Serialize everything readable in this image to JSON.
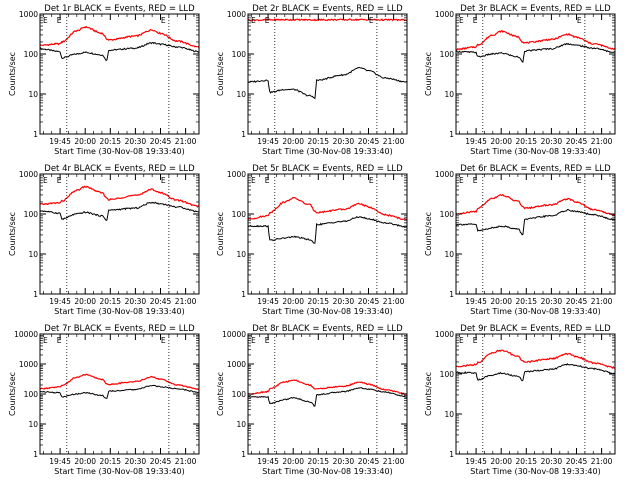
{
  "figure": {
    "colors": {
      "events": "#000000",
      "lld": "#ff0000",
      "background": "#ffffff",
      "axes": "#000000"
    },
    "shared": {
      "xlabel": "Start Time (30-Nov-08 19:33:40)",
      "ylabel": "Counts/sec",
      "xtick_labels": [
        "19:45",
        "20:00",
        "20:15",
        "20:30",
        "20:45",
        "21:00"
      ],
      "marker_label": "E",
      "y_scale": "log"
    }
  },
  "chart_data": [
    {
      "type": "line",
      "title": "Det 1r BLACK = Events, RED = LLD",
      "ylim": [
        1,
        1000
      ],
      "ytick_labels": [
        "1",
        "10",
        "100",
        "1000"
      ],
      "x": [
        "19:33",
        "19:45",
        "19:46",
        "19:55",
        "20:00",
        "20:10",
        "20:13",
        "20:14",
        "20:30",
        "20:40",
        "20:45",
        "20:55",
        "21:08"
      ],
      "series": [
        {
          "name": "Events",
          "values": [
            135,
            115,
            80,
            100,
            110,
            95,
            70,
            125,
            140,
            190,
            175,
            150,
            115
          ]
        },
        {
          "name": "LLD",
          "values": [
            165,
            180,
            200,
            380,
            470,
            330,
            240,
            225,
            280,
            400,
            330,
            210,
            150
          ]
        }
      ],
      "vlines": [
        "19:49",
        "20:50"
      ]
    },
    {
      "type": "line",
      "title": "Det 2r BLACK = Events, RED = LLD",
      "ylim": [
        1,
        1000
      ],
      "ytick_labels": [
        "1",
        "10",
        "100",
        "1000"
      ],
      "x": [
        "19:33",
        "19:45",
        "19:46",
        "19:55",
        "20:00",
        "20:10",
        "20:13",
        "20:14",
        "20:30",
        "20:40",
        "20:45",
        "20:55",
        "21:08"
      ],
      "series": [
        {
          "name": "Events",
          "values": [
            20,
            22,
            11,
            13,
            13,
            9,
            8,
            22,
            30,
            45,
            38,
            25,
            20
          ]
        },
        {
          "name": "LLD",
          "values": [
            700,
            710,
            715,
            720,
            720,
            715,
            710,
            715,
            720,
            725,
            720,
            715,
            710
          ]
        }
      ],
      "vlines": [
        "19:49",
        "20:50"
      ]
    },
    {
      "type": "line",
      "title": "Det 3r BLACK = Events, RED = LLD",
      "ylim": [
        1,
        1000
      ],
      "ytick_labels": [
        "1",
        "10",
        "100",
        "1000"
      ],
      "x": [
        "19:33",
        "19:45",
        "19:46",
        "19:55",
        "20:00",
        "20:10",
        "20:13",
        "20:14",
        "20:30",
        "20:40",
        "20:45",
        "20:55",
        "21:08"
      ],
      "series": [
        {
          "name": "Events",
          "values": [
            115,
            110,
            85,
            100,
            105,
            85,
            65,
            120,
            135,
            180,
            165,
            140,
            110
          ]
        },
        {
          "name": "LLD",
          "values": [
            130,
            150,
            170,
            300,
            370,
            270,
            200,
            190,
            230,
            310,
            260,
            180,
            135
          ]
        }
      ],
      "vlines": [
        "19:49",
        "20:50"
      ]
    },
    {
      "type": "line",
      "title": "Det 4r BLACK = Events, RED = LLD",
      "ylim": [
        1,
        1000
      ],
      "ytick_labels": [
        "1",
        "10",
        "100",
        "1000"
      ],
      "x": [
        "19:33",
        "19:45",
        "19:46",
        "19:55",
        "20:00",
        "20:10",
        "20:13",
        "20:14",
        "20:30",
        "20:40",
        "20:45",
        "20:55",
        "21:08"
      ],
      "series": [
        {
          "name": "Events",
          "values": [
            120,
            105,
            75,
            100,
            110,
            90,
            70,
            125,
            140,
            195,
            180,
            150,
            115
          ]
        },
        {
          "name": "LLD",
          "values": [
            175,
            190,
            210,
            390,
            480,
            340,
            250,
            230,
            290,
            410,
            340,
            220,
            155
          ]
        }
      ],
      "vlines": [
        "19:49",
        "20:50"
      ]
    },
    {
      "type": "line",
      "title": "Det 5r BLACK = Events, RED = LLD",
      "ylim": [
        1,
        1000
      ],
      "ytick_labels": [
        "1",
        "10",
        "100",
        "1000"
      ],
      "x": [
        "19:33",
        "19:45",
        "19:46",
        "19:55",
        "20:00",
        "20:10",
        "20:13",
        "20:14",
        "20:30",
        "20:40",
        "20:45",
        "20:55",
        "21:08"
      ],
      "series": [
        {
          "name": "Events",
          "values": [
            50,
            50,
            22,
            25,
            27,
            23,
            18,
            55,
            65,
            85,
            75,
            60,
            48
          ]
        },
        {
          "name": "LLD",
          "values": [
            75,
            90,
            110,
            200,
            250,
            170,
            120,
            110,
            130,
            180,
            150,
            95,
            72
          ]
        }
      ],
      "vlines": [
        "19:49",
        "20:50"
      ]
    },
    {
      "type": "line",
      "title": "Det 6r BLACK = Events, RED = LLD",
      "ylim": [
        1,
        1000
      ],
      "ytick_labels": [
        "1",
        "10",
        "100",
        "1000"
      ],
      "x": [
        "19:33",
        "19:45",
        "19:46",
        "19:55",
        "20:00",
        "20:10",
        "20:13",
        "20:14",
        "20:30",
        "20:40",
        "20:45",
        "20:55",
        "21:08"
      ],
      "series": [
        {
          "name": "Events",
          "values": [
            55,
            55,
            38,
            45,
            50,
            42,
            30,
            75,
            90,
            125,
            115,
            95,
            72
          ]
        },
        {
          "name": "LLD",
          "values": [
            100,
            115,
            140,
            250,
            300,
            210,
            150,
            140,
            170,
            240,
            200,
            130,
            95
          ]
        }
      ],
      "vlines": [
        "19:49",
        "20:50"
      ]
    },
    {
      "type": "line",
      "title": "Det 7r BLACK = Events, RED = LLD",
      "ylim": [
        1,
        10000
      ],
      "ytick_labels": [
        "1",
        "10",
        "100",
        "1000",
        "10000"
      ],
      "x": [
        "19:33",
        "19:45",
        "19:46",
        "19:55",
        "20:00",
        "20:10",
        "20:13",
        "20:14",
        "20:30",
        "20:40",
        "20:45",
        "20:55",
        "21:08"
      ],
      "series": [
        {
          "name": "Events",
          "values": [
            120,
            110,
            80,
            100,
            110,
            90,
            70,
            125,
            140,
            190,
            175,
            150,
            115
          ]
        },
        {
          "name": "LLD",
          "values": [
            150,
            170,
            190,
            360,
            440,
            310,
            220,
            210,
            260,
            370,
            310,
            200,
            145
          ]
        }
      ],
      "vlines": [
        "19:49",
        "20:50"
      ]
    },
    {
      "type": "line",
      "title": "Det 8r BLACK = Events, RED = LLD",
      "ylim": [
        1,
        10000
      ],
      "ytick_labels": [
        "1",
        "10",
        "100",
        "1000",
        "10000"
      ],
      "x": [
        "19:33",
        "19:45",
        "19:46",
        "19:55",
        "20:00",
        "20:10",
        "20:13",
        "20:14",
        "20:30",
        "20:40",
        "20:45",
        "20:55",
        "21:08"
      ],
      "series": [
        {
          "name": "Events",
          "values": [
            80,
            80,
            48,
            65,
            75,
            55,
            40,
            95,
            120,
            160,
            145,
            115,
            80
          ]
        },
        {
          "name": "LLD",
          "values": [
            100,
            120,
            150,
            250,
            290,
            200,
            150,
            150,
            180,
            250,
            210,
            140,
            100
          ]
        }
      ],
      "vlines": [
        "19:49",
        "20:50"
      ]
    },
    {
      "type": "line",
      "title": "Det 9r BLACK = Events, RED = LLD",
      "ylim": [
        1,
        1000
      ],
      "ytick_labels": [
        "1",
        "10",
        "100",
        "1000"
      ],
      "x": [
        "19:33",
        "19:45",
        "19:46",
        "19:55",
        "20:00",
        "20:10",
        "20:13",
        "20:14",
        "20:30",
        "20:40",
        "20:45",
        "20:55",
        "21:08"
      ],
      "series": [
        {
          "name": "Events",
          "values": [
            110,
            105,
            72,
            95,
            105,
            88,
            68,
            115,
            130,
            175,
            160,
            135,
            105
          ]
        },
        {
          "name": "LLD",
          "values": [
            155,
            170,
            195,
            340,
            390,
            280,
            210,
            200,
            240,
            320,
            270,
            190,
            145
          ]
        }
      ],
      "vlines": [
        "19:49",
        "20:50"
      ]
    }
  ]
}
